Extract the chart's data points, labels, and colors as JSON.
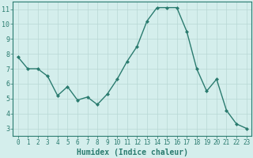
{
  "x": [
    0,
    1,
    2,
    3,
    4,
    5,
    6,
    7,
    8,
    9,
    10,
    11,
    12,
    13,
    14,
    15,
    16,
    17,
    18,
    19,
    20,
    21,
    22,
    23
  ],
  "y": [
    7.8,
    7.0,
    7.0,
    6.5,
    5.2,
    5.8,
    4.9,
    5.1,
    4.6,
    5.3,
    6.3,
    7.5,
    8.5,
    10.2,
    11.1,
    11.1,
    11.1,
    9.5,
    7.0,
    5.5,
    6.3,
    4.2,
    3.3,
    3.0
  ],
  "line_color": "#2a7b6f",
  "marker": "D",
  "marker_size": 2,
  "bg_color": "#d4eeec",
  "grid_color": "#b8d8d4",
  "tick_color": "#2a7b6f",
  "xlabel": "Humidex (Indice chaleur)",
  "xlabel_fontsize": 7,
  "ylim": [
    2.5,
    11.5
  ],
  "xlim": [
    -0.5,
    23.5
  ],
  "yticks": [
    3,
    4,
    5,
    6,
    7,
    8,
    9,
    10,
    11
  ],
  "xticks": [
    0,
    1,
    2,
    3,
    4,
    5,
    6,
    7,
    8,
    9,
    10,
    11,
    12,
    13,
    14,
    15,
    16,
    17,
    18,
    19,
    20,
    21,
    22,
    23
  ],
  "tick_fontsize": 5.5,
  "linewidth": 1.0
}
